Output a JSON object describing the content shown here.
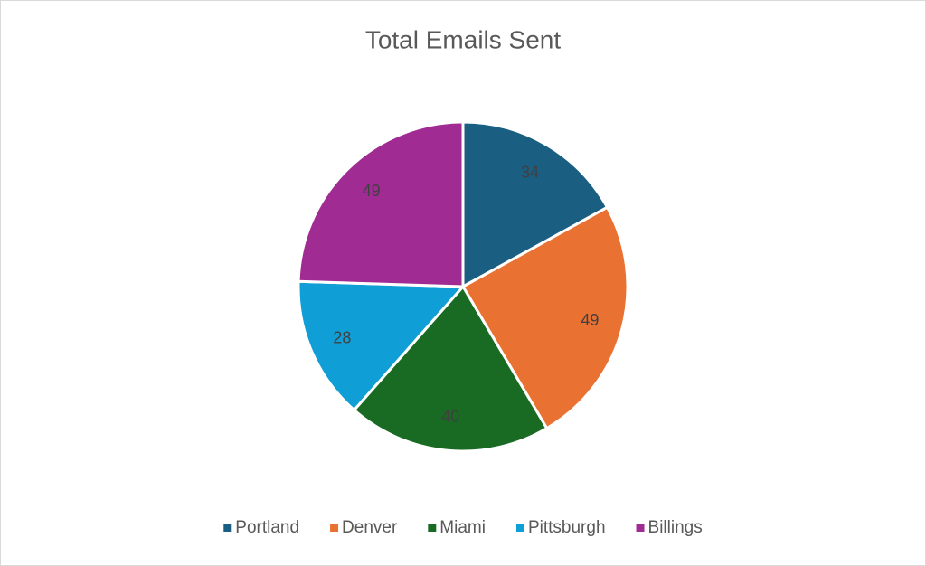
{
  "chart_data": {
    "type": "pie",
    "title": "Total Emails Sent",
    "categories": [
      "Portland",
      "Denver",
      "Miami",
      "Pittsburgh",
      "Billings"
    ],
    "values": [
      34,
      49,
      40,
      28,
      49
    ],
    "colors": [
      "#1a5e82",
      "#e97132",
      "#196b24",
      "#0f9ed5",
      "#a02b93"
    ],
    "legend": "bottom"
  }
}
